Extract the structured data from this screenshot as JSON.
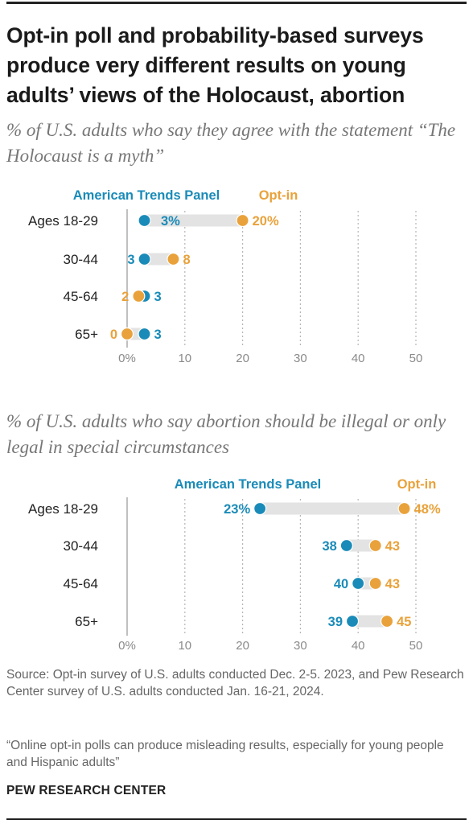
{
  "title": "Opt-in poll and probability-based surveys produce very different results on young adults’ views of the Holocaust, abortion",
  "colors": {
    "atp": "#1a8bb8",
    "optin": "#e9a23b",
    "connector": "#e3e3e3",
    "axis": "#9a9a9a"
  },
  "chart_data": [
    {
      "type": "dot",
      "subtitle": "% of U.S. adults who say they agree with the statement “The Holocaust is a myth”",
      "categories": [
        "Ages 18-29",
        "30-44",
        "45-64",
        "65+"
      ],
      "series": [
        {
          "name": "American Trends Panel",
          "values": [
            3,
            3,
            3,
            3
          ],
          "labels": [
            "3%",
            "3",
            "3",
            "3"
          ]
        },
        {
          "name": "Opt-in",
          "values": [
            20,
            8,
            2,
            0
          ],
          "labels": [
            "20%",
            "8",
            "2",
            "0"
          ]
        }
      ],
      "xlim": [
        0,
        50
      ],
      "ticks": [
        "0%",
        "10",
        "20",
        "30",
        "40",
        "50"
      ],
      "tick_values": [
        0,
        10,
        20,
        30,
        40,
        50
      ],
      "grid": true
    },
    {
      "type": "dot",
      "subtitle": "% of U.S. adults who say abortion should be illegal or only legal in special circumstances",
      "categories": [
        "Ages 18-29",
        "30-44",
        "45-64",
        "65+"
      ],
      "series": [
        {
          "name": "American Trends Panel",
          "values": [
            23,
            38,
            40,
            39
          ],
          "labels": [
            "23%",
            "38",
            "40",
            "39"
          ]
        },
        {
          "name": "Opt-in",
          "values": [
            48,
            43,
            43,
            45
          ],
          "labels": [
            "48%",
            "43",
            "43",
            "45"
          ]
        }
      ],
      "xlim": [
        0,
        50
      ],
      "ticks": [
        "0%",
        "10",
        "20",
        "30",
        "40",
        "50"
      ],
      "tick_values": [
        0,
        10,
        20,
        30,
        40,
        50
      ],
      "grid": true
    }
  ],
  "source": "Source: Opt-in survey of U.S. adults conducted Dec. 2-5. 2023, and Pew Research Center survey of U.S. adults conducted Jan. 16-21, 2024.",
  "quote": "“Online opt-in polls can produce misleading results, especially for young people and Hispanic adults”",
  "footer": "PEW RESEARCH CENTER"
}
